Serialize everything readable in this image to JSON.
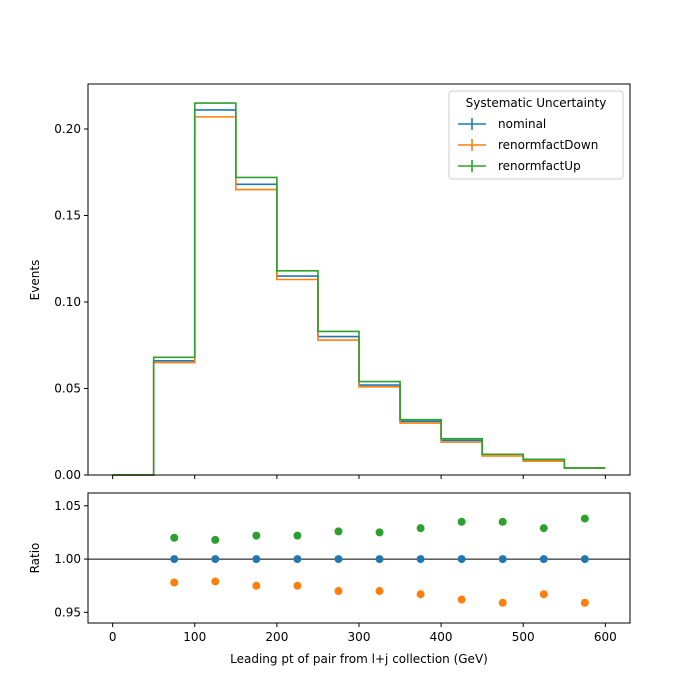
{
  "chart_data": [
    {
      "type": "line",
      "subtype": "step-histogram",
      "ylabel": "Events",
      "xlim": [
        -30,
        630
      ],
      "ylim": [
        0,
        0.226
      ],
      "yticks": [
        "0.00",
        "0.05",
        "0.10",
        "0.15",
        "0.20"
      ],
      "bin_edges": [
        0,
        50,
        100,
        150,
        200,
        250,
        300,
        350,
        400,
        450,
        500,
        550,
        600
      ],
      "legend": {
        "title": "Systematic Uncertainty",
        "position": "top-right"
      },
      "series": [
        {
          "name": "nominal",
          "color": "#1f77b4",
          "values": [
            0.0,
            0.066,
            0.211,
            0.168,
            0.115,
            0.08,
            0.052,
            0.031,
            0.02,
            0.012,
            0.009,
            0.004
          ]
        },
        {
          "name": "renormfactDown",
          "color": "#ff7f0e",
          "values": [
            0.0,
            0.065,
            0.207,
            0.165,
            0.113,
            0.078,
            0.051,
            0.03,
            0.019,
            0.011,
            0.008,
            0.004
          ]
        },
        {
          "name": "renormfactUp",
          "color": "#2ca02c",
          "values": [
            0.0,
            0.068,
            0.215,
            0.172,
            0.118,
            0.083,
            0.054,
            0.032,
            0.021,
            0.012,
            0.009,
            0.004
          ]
        }
      ]
    },
    {
      "type": "scatter",
      "xlabel": "Leading pt of pair from l+j collection (GeV)",
      "ylabel": "Ratio",
      "xlim": [
        -30,
        630
      ],
      "ylim": [
        0.94,
        1.062
      ],
      "xticks": [
        0,
        100,
        200,
        300,
        400,
        500,
        600
      ],
      "yticks": [
        "0.95",
        "1.00",
        "1.05"
      ],
      "reference_line": 1.0,
      "x": [
        75,
        125,
        175,
        225,
        275,
        325,
        375,
        425,
        475,
        525,
        575
      ],
      "series": [
        {
          "name": "nominal",
          "color": "#1f77b4",
          "values": [
            1.0,
            1.0,
            1.0,
            1.0,
            1.0,
            1.0,
            1.0,
            1.0,
            1.0,
            1.0,
            1.0
          ]
        },
        {
          "name": "renormfactDown",
          "color": "#ff7f0e",
          "values": [
            0.978,
            0.979,
            0.975,
            0.975,
            0.97,
            0.97,
            0.967,
            0.962,
            0.959,
            0.967,
            0.959
          ]
        },
        {
          "name": "renormfactUp",
          "color": "#2ca02c",
          "values": [
            1.02,
            1.018,
            1.022,
            1.022,
            1.026,
            1.025,
            1.029,
            1.035,
            1.035,
            1.029,
            1.038
          ]
        }
      ]
    }
  ]
}
